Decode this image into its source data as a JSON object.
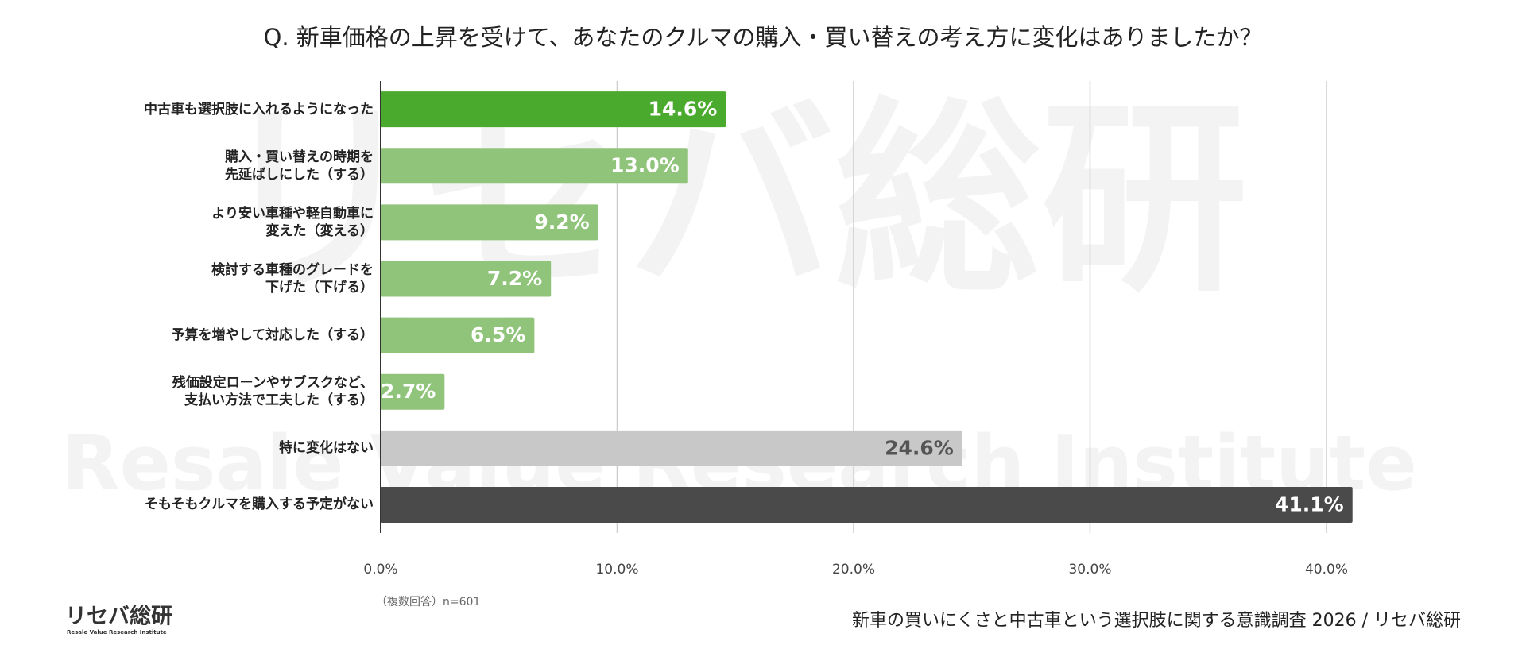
{
  "chart_data": {
    "type": "hbar",
    "title": "Q. 新車価格の上昇を受けて、あなたのクルマの購入・買い替えの考え方に変化はありましたか？",
    "categories": [
      "中古車も選択肢に入れるようになった",
      "購入・買い替えの時期を\n先延ばしにした（する）",
      "より安い車種や軽自動車に\n変えた（変える）",
      "検討する車種のグレードを\n下げた（下げる）",
      "予算を増やして対応した（する）",
      "残価設定ローンやサブスクなど、\n支払い方法で工夫した（する）",
      "特に変化はない",
      "そもそもクルマを購入する予定がない"
    ],
    "values": [
      14.6,
      13.0,
      9.2,
      7.2,
      6.5,
      2.7,
      24.6,
      41.1
    ],
    "value_labels": [
      "14.6%",
      "13.0%",
      "9.2%",
      "7.2%",
      "6.5%",
      "2.7%",
      "24.6%",
      "41.1%"
    ],
    "colors": [
      "#4aaa2e",
      "#8fc47a",
      "#8fc47a",
      "#8fc47a",
      "#8fc47a",
      "#8fc47a",
      "#c8c8c8",
      "#4a4a4a"
    ],
    "label_colors": [
      "#ffffff",
      "#ffffff",
      "#ffffff",
      "#ffffff",
      "#ffffff",
      "#ffffff",
      "#555555",
      "#ffffff"
    ],
    "xlim": [
      0,
      40
    ],
    "xticks": [
      {
        "value": 0,
        "label": "0.0%"
      },
      {
        "value": 10,
        "label": "10.0%"
      },
      {
        "value": 20,
        "label": "20.0%"
      },
      {
        "value": 30,
        "label": "30.0%"
      },
      {
        "value": 40,
        "label": "40.0%"
      }
    ],
    "grid": true,
    "footnote": "（複数回答）n=601",
    "source": "新車の買いにくさと中古車という選択肢に関する意識調査 2026 / リセバ総研",
    "logo": "リセバ総研",
    "logo_subtitle": "Resale Value Research Institute",
    "watermark": "リセバ総研",
    "watermark_subtitle": "Resale Value Research Institute"
  }
}
